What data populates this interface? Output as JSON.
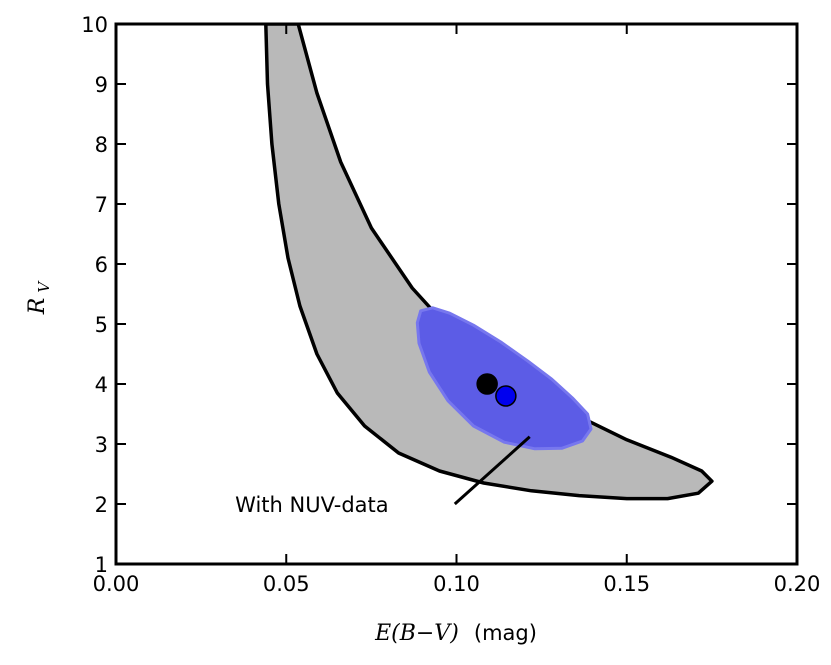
{
  "chart_data": {
    "type": "scatter",
    "title": "",
    "xlabel": "E(B−V)",
    "xlabel_unit": "(mag)",
    "ylabel_main": "R",
    "ylabel_sub": "V",
    "xlim": [
      0.0,
      0.2
    ],
    "ylim": [
      1,
      10
    ],
    "xticks": [
      "0.00",
      "0.05",
      "0.10",
      "0.15",
      "0.20"
    ],
    "yticks": [
      "1",
      "2",
      "3",
      "4",
      "5",
      "6",
      "7",
      "8",
      "9",
      "10"
    ],
    "regions": [
      {
        "name": "broad-confidence-region",
        "color": "#b9b9b9",
        "edge": "#000000",
        "polygon": [
          [
            0.044,
            10.0
          ],
          [
            0.0445,
            9.0
          ],
          [
            0.0458,
            8.0
          ],
          [
            0.0478,
            7.0
          ],
          [
            0.0505,
            6.1
          ],
          [
            0.054,
            5.3
          ],
          [
            0.059,
            4.5
          ],
          [
            0.065,
            3.85
          ],
          [
            0.073,
            3.3
          ],
          [
            0.083,
            2.85
          ],
          [
            0.095,
            2.55
          ],
          [
            0.108,
            2.35
          ],
          [
            0.122,
            2.22
          ],
          [
            0.136,
            2.14
          ],
          [
            0.15,
            2.09
          ],
          [
            0.162,
            2.09
          ],
          [
            0.171,
            2.18
          ],
          [
            0.175,
            2.38
          ],
          [
            0.172,
            2.55
          ],
          [
            0.163,
            2.78
          ],
          [
            0.15,
            3.07
          ],
          [
            0.137,
            3.43
          ],
          [
            0.124,
            3.82
          ],
          [
            0.111,
            4.27
          ],
          [
            0.099,
            4.85
          ],
          [
            0.087,
            5.6
          ],
          [
            0.075,
            6.6
          ],
          [
            0.066,
            7.7
          ],
          [
            0.059,
            8.85
          ],
          [
            0.0535,
            10.0
          ]
        ]
      },
      {
        "name": "nuv-confidence-region",
        "color": "#5c5ce6",
        "edge": "#7777ee",
        "polygon": [
          [
            0.0895,
            5.22
          ],
          [
            0.093,
            5.27
          ],
          [
            0.098,
            5.18
          ],
          [
            0.105,
            4.98
          ],
          [
            0.113,
            4.7
          ],
          [
            0.121,
            4.38
          ],
          [
            0.128,
            4.08
          ],
          [
            0.134,
            3.77
          ],
          [
            0.1385,
            3.5
          ],
          [
            0.1395,
            3.25
          ],
          [
            0.137,
            3.05
          ],
          [
            0.131,
            2.93
          ],
          [
            0.123,
            2.92
          ],
          [
            0.114,
            3.03
          ],
          [
            0.105,
            3.3
          ],
          [
            0.0975,
            3.72
          ],
          [
            0.092,
            4.2
          ],
          [
            0.089,
            4.68
          ],
          [
            0.0885,
            5.02
          ]
        ]
      }
    ],
    "points": [
      {
        "name": "best-fit-black",
        "x": 0.109,
        "y": 4.0,
        "color": "#000000"
      },
      {
        "name": "best-fit-blue-nuv",
        "x": 0.1145,
        "y": 3.8,
        "color": "#0000ee"
      }
    ],
    "annotation": {
      "text": "With NUV-data",
      "text_at": [
        0.035,
        2.0
      ],
      "arrow_from": [
        0.0995,
        2.0
      ],
      "arrow_to": [
        0.1215,
        3.12
      ]
    }
  }
}
